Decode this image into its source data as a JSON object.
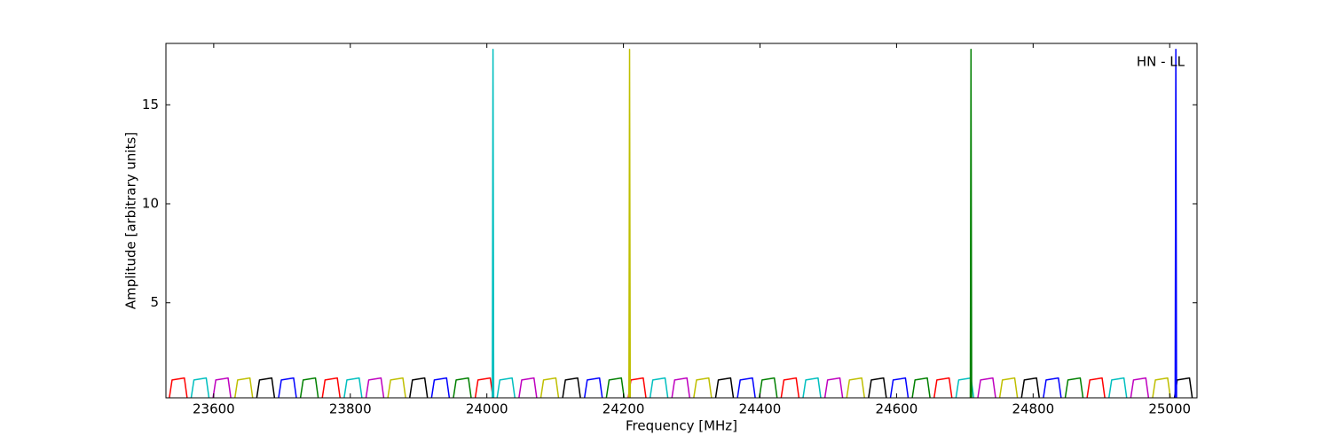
{
  "chart_data": {
    "type": "line",
    "annotation": "HN - LL",
    "x_label": "Frequency [MHz]",
    "y_label": "Amplitude [arbitrary units]",
    "xlim": [
      23530,
      25040
    ],
    "ylim": [
      0.2,
      18.1
    ],
    "xticks": [
      23600,
      23800,
      24000,
      24200,
      24400,
      24600,
      24800,
      25000
    ],
    "yticks": [
      5,
      10,
      15
    ],
    "series": [
      {
        "color": "#ff0000",
        "x": [
          23535,
          23539,
          23557,
          23561,
          null,
          23759,
          23763,
          23781,
          23785,
          null,
          23983,
          23987,
          24005,
          24009,
          null,
          24207,
          24211,
          24229,
          24233,
          null,
          24431,
          24435,
          24453,
          24457,
          null,
          24655,
          24659,
          24677,
          24681,
          null,
          24879,
          24883,
          24901,
          24905
        ],
        "values": [
          0.2,
          1.1,
          1.2,
          0.2,
          null,
          0.2,
          1.1,
          1.2,
          0.2,
          null,
          0.2,
          1.1,
          1.2,
          0.2,
          null,
          0.2,
          1.1,
          1.2,
          0.2,
          null,
          0.2,
          1.1,
          1.2,
          0.2,
          null,
          0.2,
          1.1,
          1.2,
          0.2,
          null,
          0.2,
          1.1,
          1.2,
          0.2
        ]
      },
      {
        "color": "#00bfbf",
        "x": [
          23567,
          23571,
          23589,
          23593,
          null,
          23791,
          23795,
          23813,
          23817,
          null,
          24008,
          24009,
          24010,
          null,
          24015,
          24019,
          24037,
          24041,
          null,
          24239,
          24243,
          24261,
          24265,
          null,
          24463,
          24467,
          24485,
          24489,
          null,
          24687,
          24691,
          24709,
          24713,
          null,
          24911,
          24915,
          24933,
          24937
        ],
        "values": [
          0.2,
          1.1,
          1.2,
          0.2,
          null,
          0.2,
          1.1,
          1.2,
          0.2,
          null,
          0.2,
          17.8,
          0.2,
          null,
          0.2,
          1.1,
          1.2,
          0.2,
          null,
          0.2,
          1.1,
          1.2,
          0.2,
          null,
          0.2,
          1.1,
          1.2,
          0.2,
          null,
          0.2,
          1.1,
          1.2,
          0.2,
          null,
          0.2,
          1.1,
          1.2,
          0.2
        ]
      },
      {
        "color": "#bf00bf",
        "x": [
          23599,
          23603,
          23621,
          23625,
          null,
          23823,
          23827,
          23845,
          23849,
          null,
          24047,
          24051,
          24069,
          24073,
          null,
          24271,
          24275,
          24293,
          24297,
          null,
          24495,
          24499,
          24517,
          24521,
          null,
          24719,
          24723,
          24741,
          24745,
          null,
          24943,
          24947,
          24965,
          24969
        ],
        "values": [
          0.2,
          1.1,
          1.2,
          0.2,
          null,
          0.2,
          1.1,
          1.2,
          0.2,
          null,
          0.2,
          1.1,
          1.2,
          0.2,
          null,
          0.2,
          1.1,
          1.2,
          0.2,
          null,
          0.2,
          1.1,
          1.2,
          0.2,
          null,
          0.2,
          1.1,
          1.2,
          0.2,
          null,
          0.2,
          1.1,
          1.2,
          0.2
        ]
      },
      {
        "color": "#bfbf00",
        "x": [
          23631,
          23635,
          23653,
          23657,
          null,
          23855,
          23859,
          23877,
          23881,
          null,
          24079,
          24083,
          24101,
          24105,
          null,
          24208,
          24209,
          24210,
          null,
          24303,
          24307,
          24325,
          24329,
          null,
          24527,
          24531,
          24549,
          24553,
          null,
          24751,
          24755,
          24773,
          24777,
          null,
          24975,
          24979,
          24997,
          25001
        ],
        "values": [
          0.2,
          1.1,
          1.2,
          0.2,
          null,
          0.2,
          1.1,
          1.2,
          0.2,
          null,
          0.2,
          1.1,
          1.2,
          0.2,
          null,
          0.2,
          17.8,
          0.2,
          null,
          0.2,
          1.1,
          1.2,
          0.2,
          null,
          0.2,
          1.1,
          1.2,
          0.2,
          null,
          0.2,
          1.1,
          1.2,
          0.2,
          null,
          0.2,
          1.1,
          1.2,
          0.2
        ]
      },
      {
        "color": "#000000",
        "x": [
          23663,
          23667,
          23685,
          23689,
          null,
          23887,
          23891,
          23909,
          23913,
          null,
          24111,
          24115,
          24133,
          24137,
          null,
          24335,
          24339,
          24357,
          24361,
          null,
          24559,
          24563,
          24581,
          24585,
          null,
          24783,
          24787,
          24805,
          24809,
          null,
          25007,
          25011,
          25029,
          25033
        ],
        "values": [
          0.2,
          1.1,
          1.2,
          0.2,
          null,
          0.2,
          1.1,
          1.2,
          0.2,
          null,
          0.2,
          1.1,
          1.2,
          0.2,
          null,
          0.2,
          1.1,
          1.2,
          0.2,
          null,
          0.2,
          1.1,
          1.2,
          0.2,
          null,
          0.2,
          1.1,
          1.2,
          0.2,
          null,
          0.2,
          1.1,
          1.2,
          0.2
        ]
      },
      {
        "color": "#0000ff",
        "x": [
          23695,
          23699,
          23717,
          23721,
          null,
          23919,
          23923,
          23941,
          23945,
          null,
          24143,
          24147,
          24165,
          24169,
          null,
          24367,
          24371,
          24389,
          24393,
          null,
          24591,
          24595,
          24613,
          24617,
          null,
          24815,
          24819,
          24837,
          24841,
          null,
          25008,
          25009,
          25010
        ],
        "values": [
          0.2,
          1.1,
          1.2,
          0.2,
          null,
          0.2,
          1.1,
          1.2,
          0.2,
          null,
          0.2,
          1.1,
          1.2,
          0.2,
          null,
          0.2,
          1.1,
          1.2,
          0.2,
          null,
          0.2,
          1.1,
          1.2,
          0.2,
          null,
          0.2,
          1.1,
          1.2,
          0.2,
          null,
          0.2,
          17.8,
          0.2
        ]
      },
      {
        "color": "#008000",
        "x": [
          23727,
          23731,
          23749,
          23753,
          null,
          23951,
          23955,
          23973,
          23977,
          null,
          24175,
          24179,
          24197,
          24201,
          null,
          24399,
          24403,
          24421,
          24425,
          null,
          24623,
          24627,
          24645,
          24649,
          null,
          24708,
          24709,
          24710,
          null,
          24847,
          24851,
          24869,
          24873
        ],
        "values": [
          0.2,
          1.1,
          1.2,
          0.2,
          null,
          0.2,
          1.1,
          1.2,
          0.2,
          null,
          0.2,
          1.1,
          1.2,
          0.2,
          null,
          0.2,
          1.1,
          1.2,
          0.2,
          null,
          0.2,
          1.1,
          1.2,
          0.2,
          null,
          0.2,
          17.8,
          0.2,
          null,
          0.2,
          1.1,
          1.2,
          0.2
        ]
      }
    ]
  }
}
